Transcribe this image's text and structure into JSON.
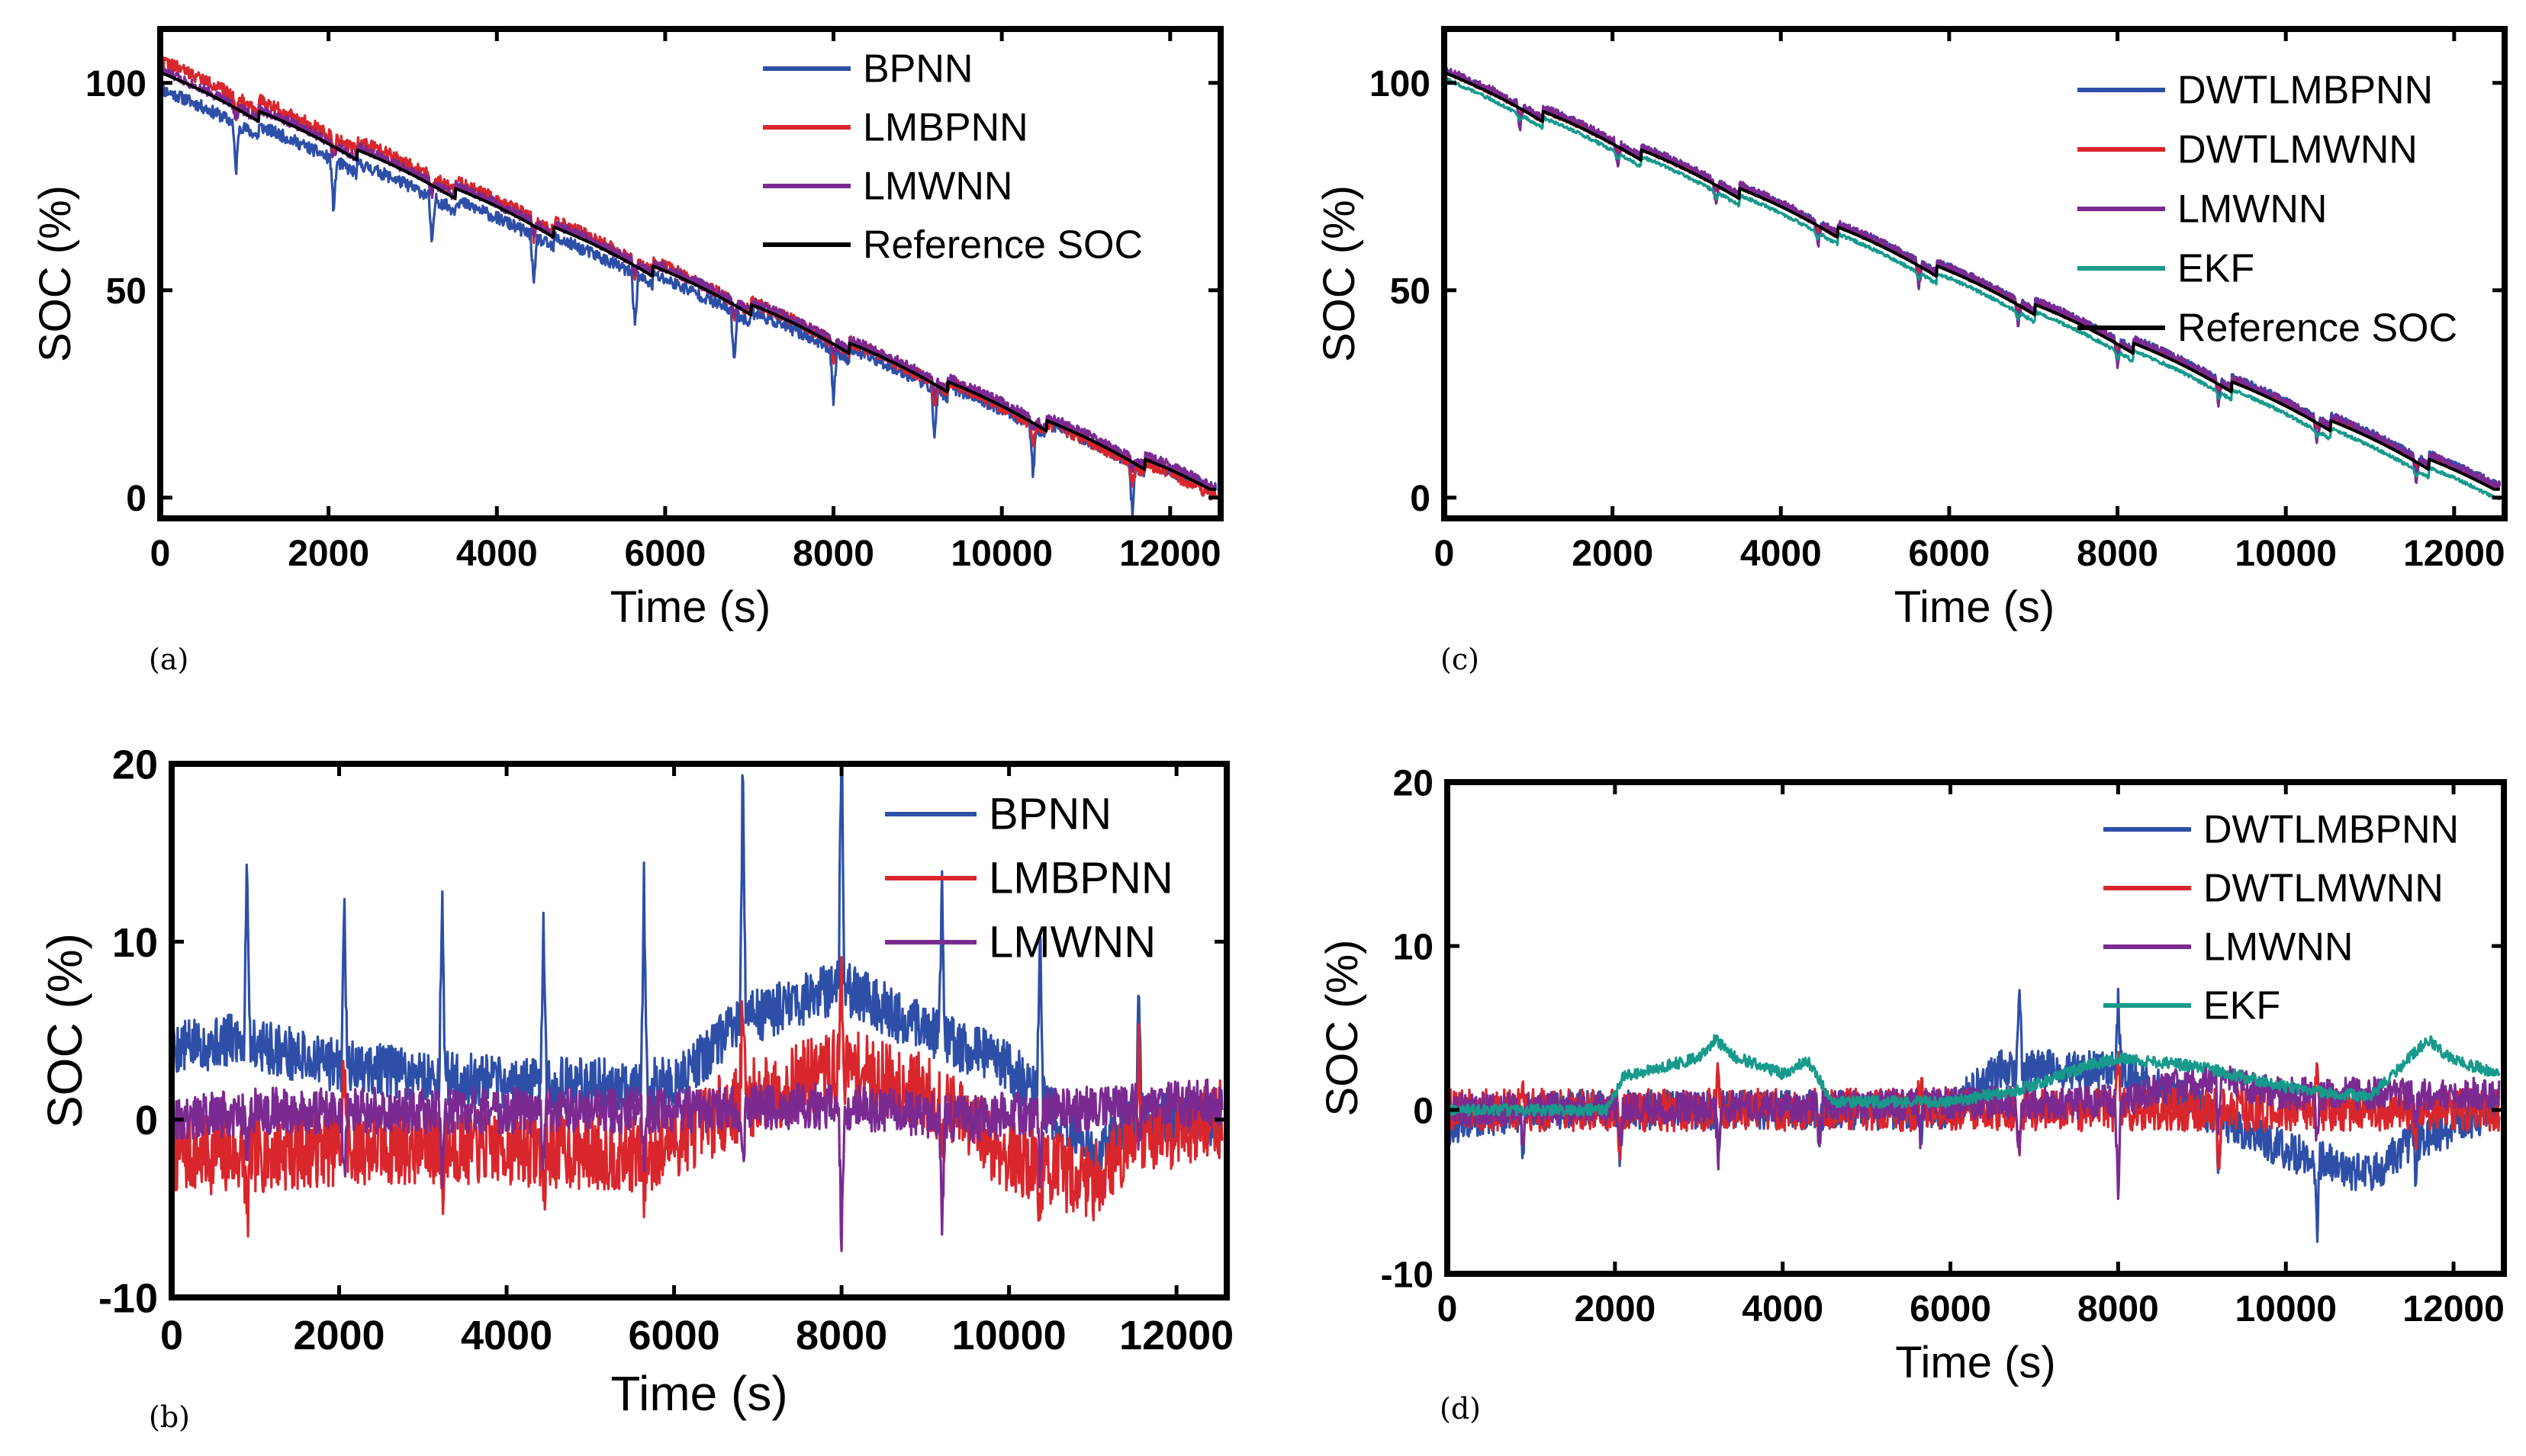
{
  "colors": {
    "blue": "#2e4fa8",
    "red": "#d9262c",
    "purple": "#7b2a92",
    "teal": "#179a8c",
    "black": "#000000"
  },
  "chart_data": [
    {
      "panel": "(a)",
      "type": "line",
      "xlabel": "Time (s)",
      "ylabel": "SOC (%)",
      "xlim": [
        0,
        12600
      ],
      "ylim": [
        -5,
        113
      ],
      "xticks": [
        0,
        2000,
        4000,
        6000,
        8000,
        10000,
        12000
      ],
      "yticks": [
        0,
        50,
        100
      ],
      "legend_position": "top-right",
      "series": [
        {
          "name": "BPNN",
          "color": "blue",
          "model": "soc",
          "offset": -4,
          "offset_end": 0,
          "noise": 1.5,
          "spike": -8,
          "seed": 11
        },
        {
          "name": "LMBPNN",
          "color": "red",
          "model": "soc",
          "offset": 3,
          "offset_end": -1,
          "noise": 1.5,
          "spike": -3,
          "seed": 22
        },
        {
          "name": "LMWNN",
          "color": "purple",
          "model": "soc",
          "offset": 0.5,
          "offset_end": 1,
          "noise": 1.2,
          "spike": -2,
          "seed": 33
        },
        {
          "name": "Reference SOC",
          "color": "black",
          "model": "soc",
          "offset": 0,
          "offset_end": 0,
          "noise": 0,
          "spike": 0,
          "seed": 44
        }
      ]
    },
    {
      "panel": "(b)",
      "type": "line",
      "xlabel": "Time (s)",
      "ylabel": "SOC (%)",
      "xlim": [
        0,
        12600
      ],
      "ylim": [
        -10,
        20
      ],
      "xticks": [
        0,
        2000,
        4000,
        6000,
        8000,
        10000,
        12000
      ],
      "yticks": [
        -10,
        0,
        10,
        20
      ],
      "legend_position": "top-right",
      "series": [
        {
          "name": "BPNN",
          "color": "blue",
          "model": "err",
          "base": [
            [
              0,
              4
            ],
            [
              800,
              4.5
            ],
            [
              2000,
              3
            ],
            [
              4000,
              2
            ],
            [
              6000,
              2
            ],
            [
              6800,
              5.5
            ],
            [
              8000,
              7.5
            ],
            [
              9000,
              5
            ],
            [
              10000,
              3
            ],
            [
              11000,
              -2
            ],
            [
              11500,
              0
            ],
            [
              12500,
              0
            ]
          ],
          "noise": 1.5,
          "spike": [
            11,
            10.5,
            9.5,
            10,
            11,
            14.5,
            15,
            9,
            9.5,
            7.5
          ],
          "seed": 5
        },
        {
          "name": "LMBPNN",
          "color": "red",
          "model": "err",
          "base": [
            [
              0,
              -2
            ],
            [
              900,
              -2
            ],
            [
              2000,
              -1.5
            ],
            [
              4000,
              -1.5
            ],
            [
              5700,
              -2
            ],
            [
              6800,
              1
            ],
            [
              8000,
              3
            ],
            [
              9000,
              1.5
            ],
            [
              10000,
              -2
            ],
            [
              11000,
              -3.5
            ],
            [
              11500,
              -1
            ],
            [
              12500,
              0
            ]
          ],
          "noise": 2.2,
          "spike": [
            -4,
            5,
            -3,
            -3,
            -2,
            6,
            5,
            -3,
            -3,
            6
          ],
          "seed": 7
        },
        {
          "name": "LMWNN",
          "color": "purple",
          "model": "err",
          "base": [
            [
              0,
              0
            ],
            [
              1000,
              0.5
            ],
            [
              6000,
              0.5
            ],
            [
              8000,
              0.8
            ],
            [
              9500,
              0
            ],
            [
              10500,
              0.5
            ],
            [
              12500,
              1
            ]
          ],
          "noise": 1.3,
          "spike": [
            -3,
            -4,
            -4,
            -3,
            -3,
            -4,
            -8,
            -6,
            -4,
            -2
          ],
          "seed": 9
        }
      ]
    },
    {
      "panel": "(c)",
      "type": "line",
      "xlabel": "Time (s)",
      "ylabel": "SOC (%)",
      "xlim": [
        0,
        12600
      ],
      "ylim": [
        -5,
        113
      ],
      "xticks": [
        0,
        2000,
        4000,
        6000,
        8000,
        10000,
        12000
      ],
      "yticks": [
        0,
        50,
        100
      ],
      "legend_position": "top-right",
      "series": [
        {
          "name": "DWTLMBPNN",
          "color": "blue",
          "model": "soc",
          "offset": 0.5,
          "offset_end": 1.5,
          "noise": 0.8,
          "spike": -3,
          "seed": 51
        },
        {
          "name": "DWTLMWNN",
          "color": "red",
          "model": "soc",
          "offset": 0.2,
          "offset_end": 0.5,
          "noise": 0.6,
          "spike": -1,
          "seed": 52
        },
        {
          "name": "LMWNN",
          "color": "purple",
          "model": "soc",
          "offset": 0.8,
          "offset_end": 1,
          "noise": 1,
          "spike": -4,
          "seed": 53
        },
        {
          "name": "EKF",
          "color": "teal",
          "model": "soc",
          "offset": -1.5,
          "offset_end": -2,
          "noise": 0.4,
          "spike": -1,
          "seed": 54
        },
        {
          "name": "Reference SOC",
          "color": "black",
          "model": "soc",
          "offset": 0,
          "offset_end": 0,
          "noise": 0,
          "spike": 0,
          "seed": 55
        }
      ]
    },
    {
      "panel": "(d)",
      "type": "line",
      "xlabel": "Time (s)",
      "ylabel": "SOC (%)",
      "xlim": [
        0,
        12600
      ],
      "ylim": [
        -10,
        20
      ],
      "xticks": [
        0,
        2000,
        4000,
        6000,
        8000,
        10000,
        12000
      ],
      "yticks": [
        -10,
        0,
        10,
        20
      ],
      "legend_position": "top-right",
      "series": [
        {
          "name": "DWTLMBPNN",
          "color": "blue",
          "model": "err",
          "base": [
            [
              0,
              -1
            ],
            [
              1000,
              0
            ],
            [
              6000,
              0
            ],
            [
              6600,
              2.5
            ],
            [
              8000,
              2.5
            ],
            [
              9000,
              0
            ],
            [
              10000,
              -2.5
            ],
            [
              11000,
              -4
            ],
            [
              11500,
              -2
            ],
            [
              12500,
              0
            ]
          ],
          "noise": 1.2,
          "spike": [
            -3,
            -3,
            -2,
            -2,
            -2,
            5,
            4,
            -3,
            -5,
            -2
          ],
          "seed": 61
        },
        {
          "name": "DWTLMWNN",
          "color": "red",
          "model": "err",
          "base": [
            [
              0,
              0
            ],
            [
              12500,
              0
            ]
          ],
          "noise": 1.3,
          "spike": [
            2,
            -2,
            2,
            -2,
            2,
            -3,
            3,
            -3,
            2,
            -2
          ],
          "seed": 62
        },
        {
          "name": "LMWNN",
          "color": "purple",
          "model": "err",
          "base": [
            [
              0,
              0
            ],
            [
              8000,
              0.5
            ],
            [
              9000,
              2
            ],
            [
              10000,
              1
            ],
            [
              12500,
              1
            ]
          ],
          "noise": 1,
          "spike": [
            -2,
            -2,
            -3,
            -2,
            -2,
            -3,
            -6,
            -3,
            -3,
            -2
          ],
          "seed": 63
        },
        {
          "name": "EKF",
          "color": "teal",
          "model": "smooth",
          "base": [
            [
              0,
              0
            ],
            [
              1900,
              0
            ],
            [
              2100,
              2
            ],
            [
              3000,
              3.2
            ],
            [
              3200,
              4.3
            ],
            [
              3400,
              3.3
            ],
            [
              4000,
              2.2
            ],
            [
              4300,
              3
            ],
            [
              4600,
              0.5
            ],
            [
              6000,
              0.5
            ],
            [
              6800,
              1.2
            ],
            [
              7600,
              2.6
            ],
            [
              8000,
              3.2
            ],
            [
              9000,
              2.6
            ],
            [
              10000,
              1.4
            ],
            [
              11000,
              0.8
            ],
            [
              11400,
              2.8
            ],
            [
              11700,
              4.3
            ],
            [
              12000,
              3
            ],
            [
              12500,
              2.3
            ]
          ],
          "noise": 0.35,
          "spike": [
            0,
            0,
            0,
            0,
            0,
            0,
            0,
            0,
            0,
            0
          ],
          "seed": 64
        }
      ]
    }
  ]
}
